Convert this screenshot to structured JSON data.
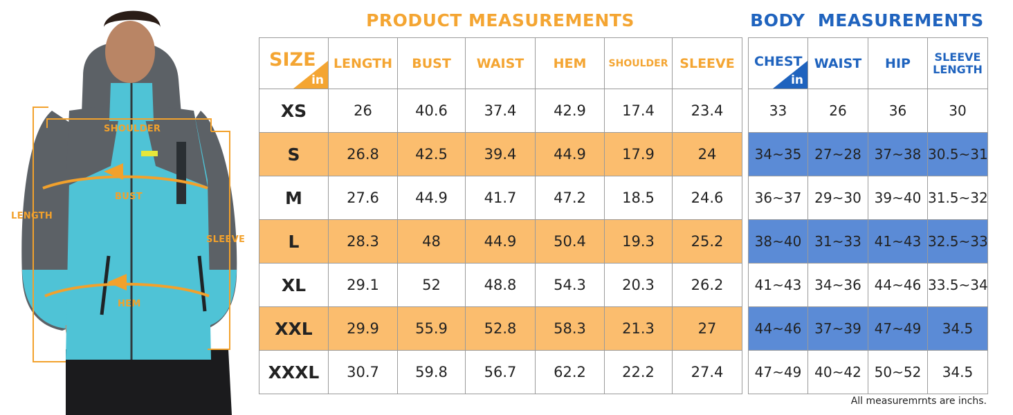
{
  "titles": {
    "product": "PRODUCT MEASUREMENTS",
    "body": "BODY  MEASUREMENTS"
  },
  "model_labels": {
    "shoulder": "SHOULDER",
    "bust": "BUST",
    "length": "LENGTH",
    "sleeve": "SLEEVE",
    "hem": "HEM"
  },
  "product_table": {
    "corner_label": "SIZE",
    "unit": "in",
    "headers": [
      "LENGTH",
      "BUST",
      "WAIST",
      "HEM",
      "SHOULDER",
      "SLEEVE"
    ],
    "rows": [
      {
        "size": "XS",
        "values": [
          "26",
          "40.6",
          "37.4",
          "42.9",
          "17.4",
          "23.4"
        ]
      },
      {
        "size": "S",
        "values": [
          "26.8",
          "42.5",
          "39.4",
          "44.9",
          "17.9",
          "24"
        ]
      },
      {
        "size": "M",
        "values": [
          "27.6",
          "44.9",
          "41.7",
          "47.2",
          "18.5",
          "24.6"
        ]
      },
      {
        "size": "L",
        "values": [
          "28.3",
          "48",
          "44.9",
          "50.4",
          "19.3",
          "25.2"
        ]
      },
      {
        "size": "XL",
        "values": [
          "29.1",
          "52",
          "48.8",
          "54.3",
          "20.3",
          "26.2"
        ]
      },
      {
        "size": "XXL",
        "values": [
          "29.9",
          "55.9",
          "52.8",
          "58.3",
          "21.3",
          "27"
        ]
      },
      {
        "size": "XXXL",
        "values": [
          "30.7",
          "59.8",
          "56.7",
          "62.2",
          "22.2",
          "27.4"
        ]
      }
    ]
  },
  "body_table": {
    "corner_label": "CHEST",
    "unit": "in",
    "headers": [
      "WAIST",
      "HIP"
    ],
    "last_header_line1": "SLEEVE",
    "last_header_line2": "LENGTH",
    "rows": [
      [
        "33",
        "26",
        "36",
        "30"
      ],
      [
        "34~35",
        "27~28",
        "37~38",
        "30.5~31"
      ],
      [
        "36~37",
        "29~30",
        "39~40",
        "31.5~32"
      ],
      [
        "38~40",
        "31~33",
        "41~43",
        "32.5~33"
      ],
      [
        "41~43",
        "34~36",
        "44~46",
        "33.5~34"
      ],
      [
        "44~46",
        "37~39",
        "47~49",
        "34.5"
      ],
      [
        "47~49",
        "40~42",
        "50~52",
        "34.5"
      ]
    ]
  },
  "footnote": "All measuremrnts are inchs.",
  "colors": {
    "orange_accent": "#F4A532",
    "orange_row": "#FBBD6E",
    "blue_accent": "#1F63BE",
    "blue_row": "#5B8BD6",
    "jacket_cyan": "#4FC3D6",
    "jacket_gray": "#5C6166"
  }
}
